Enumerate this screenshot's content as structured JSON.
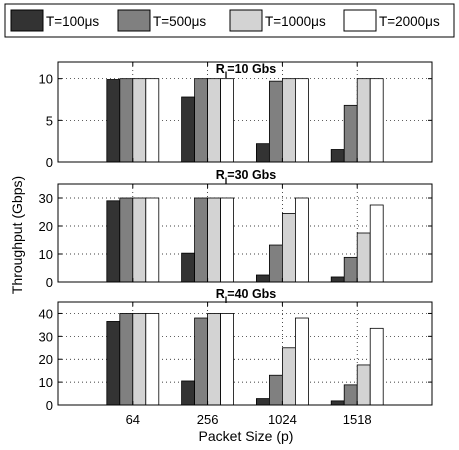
{
  "chart_data": {
    "type": "bar",
    "categories": [
      "64",
      "256",
      "1024",
      "1518"
    ],
    "xlabel": "Packet Size (p)",
    "ylabel": "Throughput (Gbps)",
    "grid": true,
    "legend_position": "top",
    "colors": [
      "#333333",
      "#808080",
      "#d3d3d3",
      "#ffffff"
    ],
    "legend": [
      "T=100μs",
      "T=500μs",
      "T=1000μs",
      "T=2000μs"
    ],
    "panels": [
      {
        "title_main": "R",
        "title_sub": "I",
        "title_rest": "=10 Gbs",
        "ylim": [
          0,
          12
        ],
        "yticks": [
          0,
          5,
          10
        ],
        "series": [
          {
            "name": "T=100μs",
            "values": [
              9.9,
              7.8,
              2.2,
              1.5
            ]
          },
          {
            "name": "T=500μs",
            "values": [
              10.0,
              10.0,
              9.7,
              6.8
            ]
          },
          {
            "name": "T=1000μs",
            "values": [
              10.0,
              10.0,
              10.0,
              10.0
            ]
          },
          {
            "name": "T=2000μs",
            "values": [
              10.0,
              10.0,
              10.0,
              10.0
            ]
          }
        ]
      },
      {
        "title_main": "R",
        "title_sub": "I",
        "title_rest": "=30 Gbs",
        "ylim": [
          0,
          35
        ],
        "yticks": [
          0,
          10,
          20,
          30
        ],
        "series": [
          {
            "name": "T=100μs",
            "values": [
              29.0,
              10.3,
              2.5,
              1.8
            ]
          },
          {
            "name": "T=500μs",
            "values": [
              30.0,
              30.0,
              13.2,
              8.8
            ]
          },
          {
            "name": "T=1000μs",
            "values": [
              30.0,
              30.0,
              24.5,
              17.5
            ]
          },
          {
            "name": "T=2000μs",
            "values": [
              30.0,
              30.0,
              30.0,
              27.5
            ]
          }
        ]
      },
      {
        "title_main": "R",
        "title_sub": "I",
        "title_rest": "=40 Gbs",
        "ylim": [
          0,
          45
        ],
        "yticks": [
          0,
          10,
          20,
          30,
          40
        ],
        "series": [
          {
            "name": "T=100μs",
            "values": [
              36.5,
              10.5,
              2.8,
              1.8
            ]
          },
          {
            "name": "T=500μs",
            "values": [
              40.0,
              38.0,
              13.0,
              8.8
            ]
          },
          {
            "name": "T=1000μs",
            "values": [
              40.0,
              40.0,
              25.0,
              17.5
            ]
          },
          {
            "name": "T=2000μs",
            "values": [
              40.0,
              40.0,
              38.0,
              33.5
            ]
          }
        ]
      }
    ]
  }
}
